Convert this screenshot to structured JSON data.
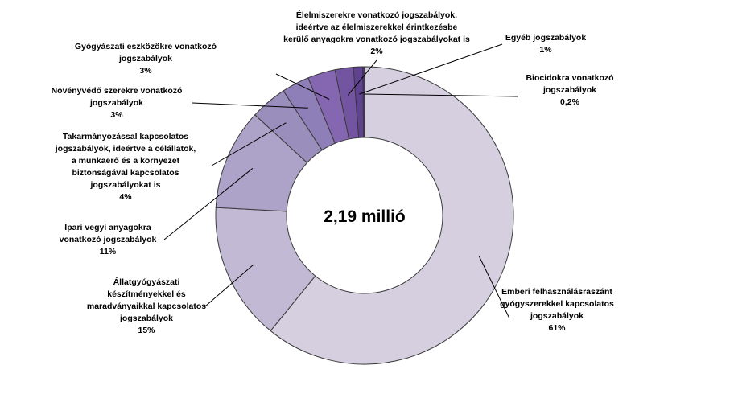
{
  "chart_data": {
    "type": "pie",
    "variant": "donut",
    "center_label": "2,19 millió",
    "colors": [
      "#d5cfe0",
      "#c2b9d5",
      "#ada3c8",
      "#9a8ebc",
      "#8f7fb8",
      "#8566b0",
      "#7354a1",
      "#5f4391",
      "#4c3180",
      "#2f1f5a"
    ],
    "slices": [
      {
        "name": "Emberi felhasználásra szánt gyógyszerekkel kapcsolatos jogszabályok",
        "value": 61,
        "label_lines": [
          "Emberi felhasználásraszánt",
          "gyógyszerekkel kapcsolatos",
          "jogszabályok"
        ],
        "value_label": "61%"
      },
      {
        "name": "Állatgyógyászati készítményekkel és maradványaikkal kapcsolatos jogszabályok",
        "value": 15,
        "label_lines": [
          "Állatgyógyászati",
          "készítményekkel és",
          "maradványaikkal kapcsolatos",
          "jogszabályok"
        ],
        "value_label": "15%"
      },
      {
        "name": "Ipari vegyi anyagokra vonatkozó jogszabályok",
        "value": 11,
        "label_lines": [
          "Ipari vegyi anyagokra",
          "vonatkozó jogszabályok"
        ],
        "value_label": "11%"
      },
      {
        "name": "Takarmányozással kapcsolatos jogszabályok",
        "value": 4,
        "label_lines": [
          "Takarmányozással kapcsolatos",
          "jogszabályok, ideértve a célállatok,",
          "a munkaerő és a környezet",
          "biztonságával kapcsolatos",
          "jogszabályokat is"
        ],
        "value_label": "4%"
      },
      {
        "name": "Növényvédő szerekre vonatkozó jogszabályok",
        "value": 3,
        "label_lines": [
          "Növényvédő szerekre vonatkozó",
          "jogszabályok"
        ],
        "value_label": "3%"
      },
      {
        "name": "Gyógyászati eszközökre vonatkozó jogszabályok",
        "value": 3,
        "label_lines": [
          "Gyógyászati eszközökre vonatkozó",
          "jogszabályok"
        ],
        "value_label": "3%"
      },
      {
        "name": "Élelmiszerekre vonatkozó jogszabályok",
        "value": 2,
        "label_lines": [
          "Élelmiszerekre vonatkozó jogszabályok,",
          "ideértve az élelmiszerekkel érintkezésbe",
          "kerülő anyagokra vonatkozó jogszabályokat is"
        ],
        "value_label": "2%"
      },
      {
        "name": "Egyéb jogszabályok",
        "value": 1,
        "label_lines": [
          "Egyéb jogszabályok"
        ],
        "value_label": "1%"
      },
      {
        "name": "Biocidokra vonatkozó jogszabályok",
        "value": 0.2,
        "label_lines": [
          "Biocidokra vonatkozó",
          "jogszabályok"
        ],
        "value_label": "0,2%"
      }
    ]
  }
}
